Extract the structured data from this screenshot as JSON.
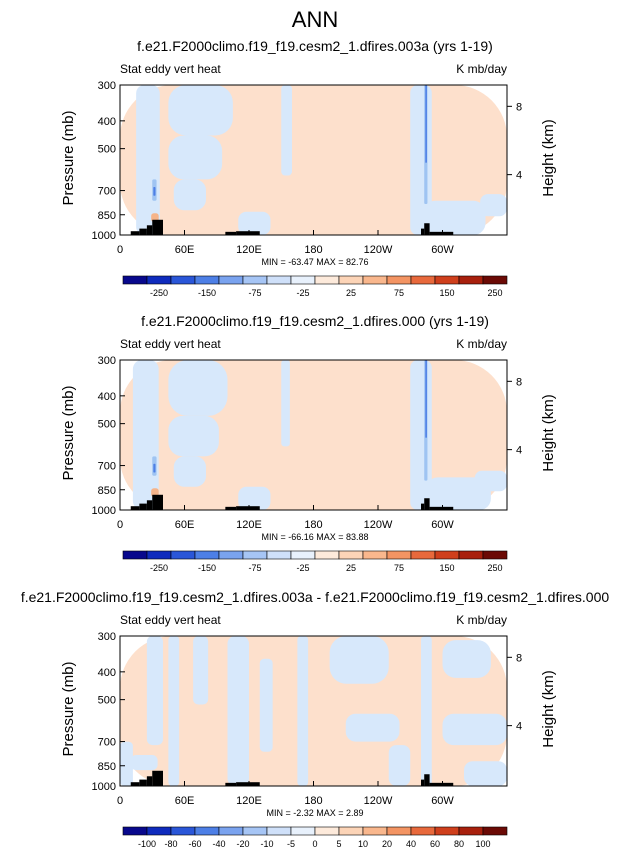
{
  "figure": {
    "title": "ANN",
    "colors": {
      "land": "#000000",
      "pos_light": "#fde0cc",
      "neg_light": "#d7e8fb",
      "neg_mid": "#9fc4f2",
      "neg_strong": "#4d7fe6",
      "pos_mid": "#f5b48a"
    }
  },
  "chart_data": [
    {
      "type": "heatmap",
      "title": "f.e21.F2000climo.f19_f19.cesm2_1.dfires.003a (yrs 1-19)",
      "left_label": "Stat eddy vert heat",
      "right_label": "K mb/day",
      "ylabel": "Pressure (mb)",
      "ylabel_right": "Height (km)",
      "x_ticks": [
        "0",
        "60E",
        "120E",
        "180",
        "120W",
        "60W"
      ],
      "y_ticks": [
        "300",
        "400",
        "500",
        "700",
        "850",
        "1000"
      ],
      "height_ticks": [
        "8",
        "4"
      ],
      "ylim": [
        1000,
        300
      ],
      "x_range": [
        0,
        360
      ],
      "y_scale": "log",
      "stats": "MIN = -63.47   MAX =  82.76",
      "colorbar_levels": [
        "-250",
        "-150",
        "-75",
        "-25",
        "25",
        "75",
        "150",
        "250"
      ],
      "colorbar_colors": [
        "#08088c",
        "#0f2bbd",
        "#2a56d8",
        "#4d7fe6",
        "#7aa3ef",
        "#a6c5f5",
        "#cfe0f9",
        "#e8f1fc",
        "#fdeadb",
        "#fcd4b7",
        "#f9b78d",
        "#f39463",
        "#e8693c",
        "#cf3f1c",
        "#a8200d",
        "#6b0a05"
      ],
      "features": [
        {
          "x0": 0,
          "x1": 360,
          "p0": 300,
          "p1": 1000,
          "level": "pos_light"
        },
        {
          "x0": 15,
          "x1": 37,
          "p0": 300,
          "p1": 1000,
          "level": "neg_light"
        },
        {
          "x0": 45,
          "x1": 105,
          "p0": 300,
          "p1": 450,
          "level": "neg_light"
        },
        {
          "x0": 45,
          "x1": 95,
          "p0": 450,
          "p1": 640,
          "level": "neg_light"
        },
        {
          "x0": 50,
          "x1": 80,
          "p0": 640,
          "p1": 820,
          "level": "neg_light"
        },
        {
          "x0": 150,
          "x1": 160,
          "p0": 300,
          "p1": 620,
          "level": "neg_light"
        },
        {
          "x0": 270,
          "x1": 290,
          "p0": 300,
          "p1": 1000,
          "level": "neg_light"
        },
        {
          "x0": 282,
          "x1": 340,
          "p0": 760,
          "p1": 1000,
          "level": "neg_light"
        },
        {
          "x0": 335,
          "x1": 360,
          "p0": 720,
          "p1": 860,
          "level": "neg_light"
        },
        {
          "x0": 110,
          "x1": 140,
          "p0": 830,
          "p1": 1000,
          "level": "neg_light"
        },
        {
          "x0": 30,
          "x1": 34,
          "p0": 640,
          "p1": 760,
          "level": "neg_mid"
        },
        {
          "x0": 31,
          "x1": 33,
          "p0": 680,
          "p1": 730,
          "level": "neg_strong"
        },
        {
          "x0": 29,
          "x1": 36,
          "p0": 840,
          "p1": 900,
          "level": "pos_mid"
        },
        {
          "x0": 283,
          "x1": 286,
          "p0": 300,
          "p1": 780,
          "level": "neg_mid"
        },
        {
          "x0": 284,
          "x1": 285.5,
          "p0": 300,
          "p1": 560,
          "level": "neg_strong"
        }
      ],
      "land": [
        {
          "x0": 10,
          "x1": 18,
          "p0": 970,
          "p1": 1000
        },
        {
          "x0": 18,
          "x1": 25,
          "p0": 950,
          "p1": 1000
        },
        {
          "x0": 25,
          "x1": 30,
          "p0": 925,
          "p1": 1000
        },
        {
          "x0": 30,
          "x1": 40,
          "p0": 885,
          "p1": 1000
        },
        {
          "x0": 98,
          "x1": 108,
          "p0": 975,
          "p1": 1000
        },
        {
          "x0": 108,
          "x1": 130,
          "p0": 970,
          "p1": 1000
        },
        {
          "x0": 280,
          "x1": 283,
          "p0": 950,
          "p1": 1000
        },
        {
          "x0": 283,
          "x1": 288,
          "p0": 910,
          "p1": 1000
        },
        {
          "x0": 288,
          "x1": 310,
          "p0": 975,
          "p1": 1000
        }
      ]
    },
    {
      "type": "heatmap",
      "title": "f.e21.F2000climo.f19_f19.cesm2_1.dfires.000 (yrs 1-19)",
      "left_label": "Stat eddy vert heat",
      "right_label": "K mb/day",
      "ylabel": "Pressure (mb)",
      "ylabel_right": "Height (km)",
      "x_ticks": [
        "0",
        "60E",
        "120E",
        "180",
        "120W",
        "60W"
      ],
      "y_ticks": [
        "300",
        "400",
        "500",
        "700",
        "850",
        "1000"
      ],
      "height_ticks": [
        "8",
        "4"
      ],
      "ylim": [
        1000,
        300
      ],
      "x_range": [
        0,
        360
      ],
      "y_scale": "log",
      "stats": "MIN = -66.16   MAX =  83.88",
      "colorbar_levels": [
        "-250",
        "-150",
        "-75",
        "-25",
        "25",
        "75",
        "150",
        "250"
      ],
      "colorbar_colors": [
        "#08088c",
        "#0f2bbd",
        "#2a56d8",
        "#4d7fe6",
        "#7aa3ef",
        "#a6c5f5",
        "#cfe0f9",
        "#e8f1fc",
        "#fdeadb",
        "#fcd4b7",
        "#f9b78d",
        "#f39463",
        "#e8693c",
        "#cf3f1c",
        "#a8200d",
        "#6b0a05"
      ],
      "features": [
        {
          "x0": 0,
          "x1": 360,
          "p0": 300,
          "p1": 1000,
          "level": "pos_light"
        },
        {
          "x0": 12,
          "x1": 36,
          "p0": 300,
          "p1": 1000,
          "level": "neg_light"
        },
        {
          "x0": 45,
          "x1": 100,
          "p0": 300,
          "p1": 470,
          "level": "neg_light"
        },
        {
          "x0": 45,
          "x1": 92,
          "p0": 470,
          "p1": 650,
          "level": "neg_light"
        },
        {
          "x0": 50,
          "x1": 80,
          "p0": 650,
          "p1": 830,
          "level": "neg_light"
        },
        {
          "x0": 150,
          "x1": 158,
          "p0": 300,
          "p1": 600,
          "level": "neg_light"
        },
        {
          "x0": 270,
          "x1": 290,
          "p0": 300,
          "p1": 1000,
          "level": "neg_light"
        },
        {
          "x0": 285,
          "x1": 345,
          "p0": 770,
          "p1": 1000,
          "level": "neg_light"
        },
        {
          "x0": 330,
          "x1": 360,
          "p0": 730,
          "p1": 860,
          "level": "neg_light"
        },
        {
          "x0": 110,
          "x1": 140,
          "p0": 830,
          "p1": 1000,
          "level": "neg_light"
        },
        {
          "x0": 30,
          "x1": 34,
          "p0": 650,
          "p1": 760,
          "level": "neg_mid"
        },
        {
          "x0": 31,
          "x1": 33,
          "p0": 690,
          "p1": 740,
          "level": "neg_strong"
        },
        {
          "x0": 29,
          "x1": 36,
          "p0": 840,
          "p1": 900,
          "level": "pos_mid"
        },
        {
          "x0": 283,
          "x1": 286,
          "p0": 300,
          "p1": 790,
          "level": "neg_mid"
        },
        {
          "x0": 284,
          "x1": 285.5,
          "p0": 300,
          "p1": 560,
          "level": "neg_strong"
        }
      ],
      "land": [
        {
          "x0": 10,
          "x1": 18,
          "p0": 970,
          "p1": 1000
        },
        {
          "x0": 18,
          "x1": 25,
          "p0": 950,
          "p1": 1000
        },
        {
          "x0": 25,
          "x1": 30,
          "p0": 925,
          "p1": 1000
        },
        {
          "x0": 30,
          "x1": 40,
          "p0": 885,
          "p1": 1000
        },
        {
          "x0": 98,
          "x1": 108,
          "p0": 975,
          "p1": 1000
        },
        {
          "x0": 108,
          "x1": 130,
          "p0": 970,
          "p1": 1000
        },
        {
          "x0": 280,
          "x1": 283,
          "p0": 950,
          "p1": 1000
        },
        {
          "x0": 283,
          "x1": 288,
          "p0": 910,
          "p1": 1000
        },
        {
          "x0": 288,
          "x1": 310,
          "p0": 975,
          "p1": 1000
        }
      ]
    },
    {
      "type": "heatmap",
      "title": "f.e21.F2000climo.f19_f19.cesm2_1.dfires.003a - f.e21.F2000climo.f19_f19.cesm2_1.dfires.000",
      "left_label": "Stat eddy vert heat",
      "right_label": "K mb/day",
      "ylabel": "Pressure (mb)",
      "ylabel_right": "Height (km)",
      "x_ticks": [
        "0",
        "60E",
        "120E",
        "180",
        "120W",
        "60W"
      ],
      "y_ticks": [
        "300",
        "400",
        "500",
        "700",
        "850",
        "1000"
      ],
      "height_ticks": [
        "8",
        "4"
      ],
      "ylim": [
        1000,
        300
      ],
      "x_range": [
        0,
        360
      ],
      "y_scale": "log",
      "stats": "MIN = -2.32   MAX =  2.89",
      "colorbar_levels": [
        "-100",
        "-80",
        "-60",
        "-40",
        "-20",
        "-10",
        "-5",
        "0",
        "5",
        "10",
        "20",
        "40",
        "60",
        "80",
        "100"
      ],
      "colorbar_colors": [
        "#08088c",
        "#0f2bbd",
        "#2a56d8",
        "#4d7fe6",
        "#7aa3ef",
        "#a6c5f5",
        "#cfe0f9",
        "#e8f1fc",
        "#fdeadb",
        "#fcd4b7",
        "#f9b78d",
        "#f39463",
        "#e8693c",
        "#cf3f1c",
        "#a8200d",
        "#6b0a05"
      ],
      "features": [
        {
          "x0": 0,
          "x1": 360,
          "p0": 300,
          "p1": 1000,
          "level": "pos_light"
        },
        {
          "x0": 0,
          "x1": 12,
          "p0": 700,
          "p1": 1000,
          "level": "neg_light"
        },
        {
          "x0": 25,
          "x1": 40,
          "p0": 300,
          "p1": 720,
          "level": "neg_light"
        },
        {
          "x0": 10,
          "x1": 35,
          "p0": 780,
          "p1": 880,
          "level": "neg_light"
        },
        {
          "x0": 45,
          "x1": 55,
          "p0": 300,
          "p1": 1000,
          "level": "neg_light"
        },
        {
          "x0": 68,
          "x1": 82,
          "p0": 300,
          "p1": 520,
          "level": "neg_light"
        },
        {
          "x0": 100,
          "x1": 120,
          "p0": 300,
          "p1": 1000,
          "level": "neg_light"
        },
        {
          "x0": 130,
          "x1": 142,
          "p0": 360,
          "p1": 760,
          "level": "neg_light"
        },
        {
          "x0": 165,
          "x1": 175,
          "p0": 300,
          "p1": 1000,
          "level": "neg_light"
        },
        {
          "x0": 195,
          "x1": 250,
          "p0": 300,
          "p1": 440,
          "level": "neg_light"
        },
        {
          "x0": 210,
          "x1": 260,
          "p0": 560,
          "p1": 700,
          "level": "neg_light"
        },
        {
          "x0": 250,
          "x1": 270,
          "p0": 720,
          "p1": 1000,
          "level": "neg_light"
        },
        {
          "x0": 280,
          "x1": 290,
          "p0": 300,
          "p1": 1000,
          "level": "neg_light"
        },
        {
          "x0": 300,
          "x1": 345,
          "p0": 310,
          "p1": 420,
          "level": "neg_light"
        },
        {
          "x0": 300,
          "x1": 360,
          "p0": 560,
          "p1": 720,
          "level": "neg_light"
        },
        {
          "x0": 320,
          "x1": 360,
          "p0": 820,
          "p1": 1000,
          "level": "neg_light"
        }
      ],
      "land": [
        {
          "x0": 10,
          "x1": 18,
          "p0": 970,
          "p1": 1000
        },
        {
          "x0": 18,
          "x1": 25,
          "p0": 950,
          "p1": 1000
        },
        {
          "x0": 25,
          "x1": 30,
          "p0": 925,
          "p1": 1000
        },
        {
          "x0": 30,
          "x1": 40,
          "p0": 885,
          "p1": 1000
        },
        {
          "x0": 98,
          "x1": 108,
          "p0": 975,
          "p1": 1000
        },
        {
          "x0": 108,
          "x1": 130,
          "p0": 970,
          "p1": 1000
        },
        {
          "x0": 280,
          "x1": 283,
          "p0": 950,
          "p1": 1000
        },
        {
          "x0": 283,
          "x1": 288,
          "p0": 910,
          "p1": 1000
        },
        {
          "x0": 288,
          "x1": 310,
          "p0": 975,
          "p1": 1000
        }
      ]
    }
  ]
}
